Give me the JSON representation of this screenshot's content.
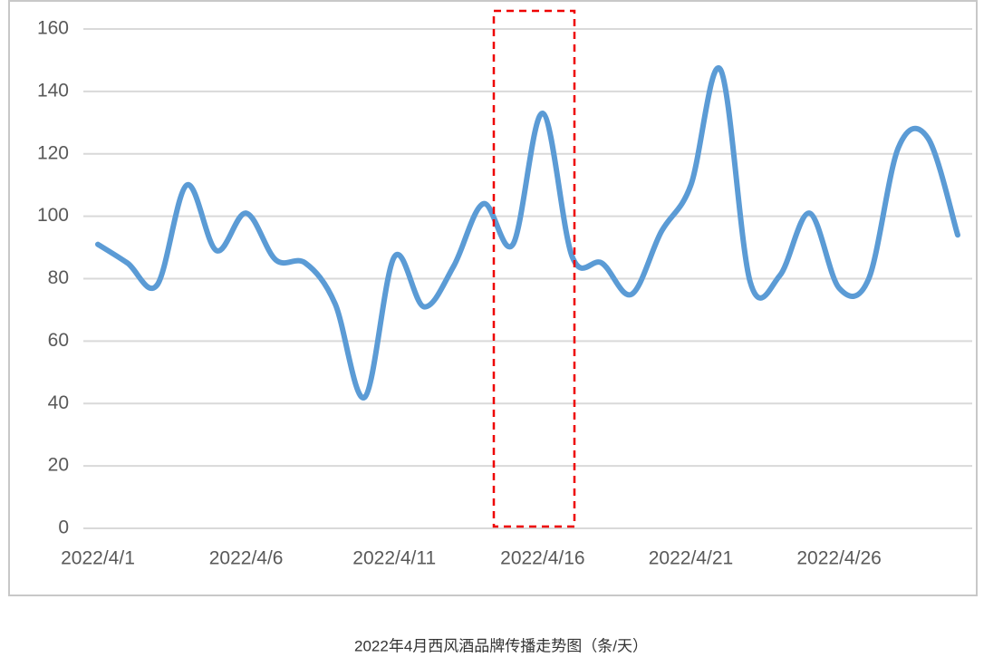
{
  "chart_data": {
    "type": "line",
    "caption": "2022年4月西风酒品牌传播走势图（条/天）",
    "categories": [
      "2022/4/1",
      null,
      null,
      null,
      null,
      "2022/4/6",
      null,
      null,
      null,
      null,
      "2022/4/11",
      null,
      null,
      null,
      null,
      "2022/4/16",
      null,
      null,
      null,
      null,
      "2022/4/21",
      null,
      null,
      null,
      null,
      "2022/4/26",
      null,
      null,
      null,
      null
    ],
    "values": [
      91,
      85,
      78,
      110,
      89,
      101,
      86,
      85,
      72,
      42,
      87,
      71,
      84,
      104,
      91,
      133,
      87,
      85,
      75,
      95,
      110,
      147,
      79,
      81,
      101,
      77,
      80,
      122,
      125,
      94
    ],
    "color": "#5b9bd5",
    "ylim": [
      0,
      160
    ],
    "yticks": [
      0,
      20,
      40,
      60,
      80,
      100,
      120,
      140,
      160
    ],
    "grid": true
  }
}
